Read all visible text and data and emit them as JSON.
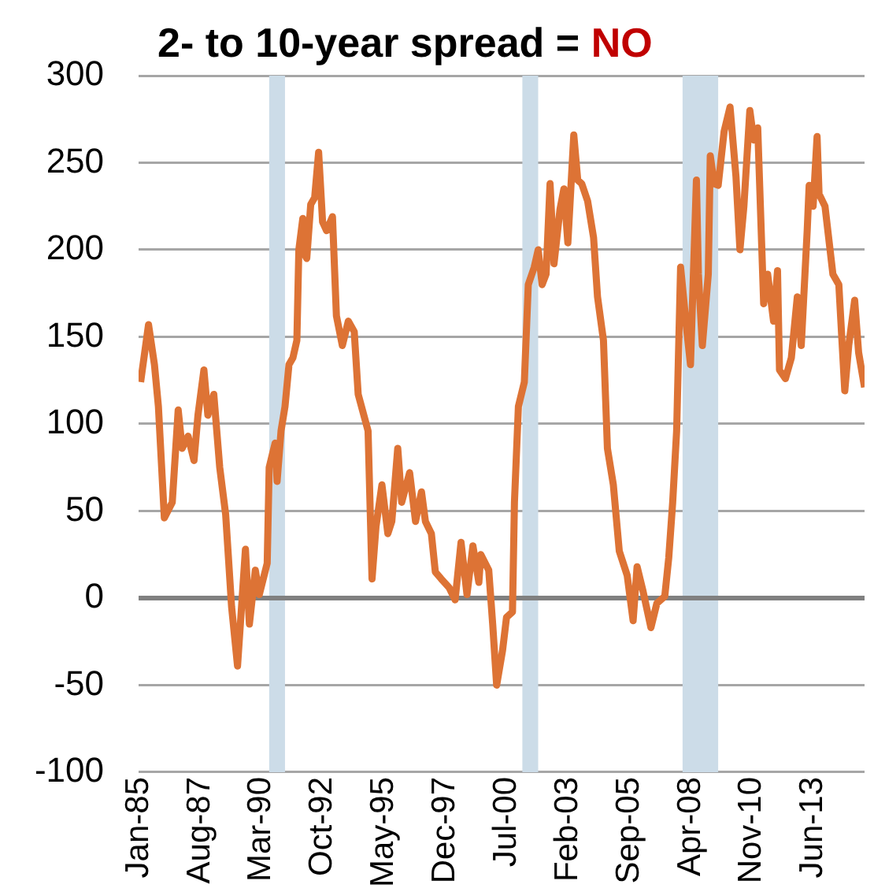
{
  "chart_data": {
    "type": "line",
    "title": "2- to 10-year spread = NO",
    "x": [
      "1985-02",
      "1985-06",
      "1985-09",
      "1985-11",
      "1986-02",
      "1986-06",
      "1986-09",
      "1986-11",
      "1987-02",
      "1987-05",
      "1987-07",
      "1987-10",
      "1987-12",
      "1988-03",
      "1988-06",
      "1988-09",
      "1988-12",
      "1989-03",
      "1989-07",
      "1989-09",
      "1989-12",
      "1990-02",
      "1990-06",
      "1990-07",
      "1990-10",
      "1990-11",
      "1991-01",
      "1991-03",
      "1991-05",
      "1991-07",
      "1991-09",
      "1991-10",
      "1991-12",
      "1992-01",
      "1992-02",
      "1992-04",
      "1992-06",
      "1992-08",
      "1992-10",
      "1992-12",
      "1993-03",
      "1993-05",
      "1993-08",
      "1993-11",
      "1994-02",
      "1994-04",
      "1994-09",
      "1994-11",
      "1995-01",
      "1995-04",
      "1995-07",
      "1995-09",
      "1995-12",
      "1996-02",
      "1996-06",
      "1996-09",
      "1996-12",
      "1997-02",
      "1997-05",
      "1997-07",
      "1997-10",
      "1998-02",
      "1998-05",
      "1998-08",
      "1998-11",
      "1999-02",
      "1999-05",
      "1999-06",
      "1999-10",
      "1999-12",
      "2000-02",
      "2000-05",
      "2000-07",
      "2000-10",
      "2000-11",
      "2001-01",
      "2001-04",
      "2001-06",
      "2001-09",
      "2001-11",
      "2002-01",
      "2002-03",
      "2002-05",
      "2002-07",
      "2002-10",
      "2002-12",
      "2003-02",
      "2003-05",
      "2003-07",
      "2003-09",
      "2003-12",
      "2004-03",
      "2004-05",
      "2004-08",
      "2004-10",
      "2005-01",
      "2005-04",
      "2005-08",
      "2005-11",
      "2006-01",
      "2006-04",
      "2006-08",
      "2006-11",
      "2007-03",
      "2007-05",
      "2007-07",
      "2007-09",
      "2007-11",
      "2008-02",
      "2008-04",
      "2008-07",
      "2008-08",
      "2008-10",
      "2009-01",
      "2009-02",
      "2009-04",
      "2009-06",
      "2009-09",
      "2009-12",
      "2010-03",
      "2010-05",
      "2010-07",
      "2010-10",
      "2010-12",
      "2011-02",
      "2011-05",
      "2011-07",
      "2011-10",
      "2011-12",
      "2012-01",
      "2012-04",
      "2012-07",
      "2012-10",
      "2012-12",
      "2013-03",
      "2013-04",
      "2013-06",
      "2013-08",
      "2013-09",
      "2013-12",
      "2014-04",
      "2014-07",
      "2014-10",
      "2014-12",
      "2015-03",
      "2015-05",
      "2015-08"
    ],
    "series": [
      {
        "color": "#dd7335",
        "values": [
          124,
          157,
          134,
          110,
          46,
          55,
          108,
          86,
          93,
          79,
          105,
          131,
          105,
          117,
          75,
          48,
          -5,
          -39,
          28,
          -15,
          16,
          2,
          20,
          75,
          89,
          67,
          96,
          110,
          134,
          138,
          148,
          200,
          218,
          197,
          195,
          226,
          230,
          256,
          216,
          211,
          219,
          162,
          145,
          159,
          153,
          117,
          96,
          11,
          41,
          65,
          37,
          44,
          86,
          55,
          72,
          44,
          61,
          44,
          37,
          15,
          11,
          6,
          -1,
          32,
          2,
          30,
          9,
          25,
          16,
          -15,
          -50,
          -30,
          -11,
          -8,
          55,
          110,
          124,
          180,
          190,
          200,
          180,
          186,
          238,
          192,
          223,
          235,
          204,
          266,
          240,
          238,
          228,
          207,
          173,
          148,
          86,
          65,
          27,
          13,
          -13,
          18,
          4,
          -17,
          -3,
          1,
          23,
          55,
          96,
          190,
          155,
          134,
          240,
          186,
          145,
          186,
          254,
          238,
          237,
          268,
          282,
          242,
          200,
          225,
          280,
          263,
          270,
          169,
          186,
          159,
          188,
          131,
          126,
          138,
          173,
          145,
          211,
          237,
          225,
          265,
          232,
          225,
          186,
          180,
          119,
          145,
          171,
          141,
          121
        ]
      }
    ],
    "xlim": [
      "1985-01",
      "2015-08"
    ],
    "xticks": [
      {
        "value": "1985-01",
        "label": "Jan-85"
      },
      {
        "value": "1987-08",
        "label": "Aug-87"
      },
      {
        "value": "1990-03",
        "label": "Mar-90"
      },
      {
        "value": "1992-10",
        "label": "Oct-92"
      },
      {
        "value": "1995-05",
        "label": "May-95"
      },
      {
        "value": "1997-12",
        "label": "Dec-97"
      },
      {
        "value": "2000-07",
        "label": "Jul-00"
      },
      {
        "value": "2003-02",
        "label": "Feb-03"
      },
      {
        "value": "2005-09",
        "label": "Sep-05"
      },
      {
        "value": "2008-04",
        "label": "Apr-08"
      },
      {
        "value": "2010-11",
        "label": "Nov-10"
      },
      {
        "value": "2013-06",
        "label": "Jun-13"
      }
    ],
    "ylim": [
      -100,
      300
    ],
    "yticks": [
      -100,
      -50,
      0,
      50,
      100,
      150,
      200,
      250,
      300
    ],
    "grid": "y",
    "legend": false,
    "line_style": "solid",
    "ref_lines": [
      {
        "axis": "y",
        "value": 0,
        "color": "#808080"
      }
    ],
    "bands": [
      {
        "axis": "x",
        "from": "1990-07",
        "to": "1991-03",
        "color": "#ccdce8"
      },
      {
        "axis": "x",
        "from": "2001-03",
        "to": "2001-11",
        "color": "#ccdce8"
      },
      {
        "axis": "x",
        "from": "2007-12",
        "to": "2009-06",
        "color": "#ccdce8"
      }
    ]
  }
}
